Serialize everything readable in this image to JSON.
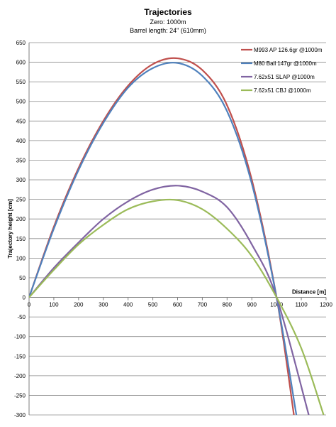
{
  "chart_data": {
    "type": "line",
    "title": "Trajectories",
    "subtitle_lines": [
      "Zero: 1000m",
      "Barrel length: 24\" (610mm)"
    ],
    "xlabel": "Distance [m]",
    "ylabel": "Trajectory height [cm]",
    "xlim": [
      0,
      1200
    ],
    "ylim": [
      -300,
      650
    ],
    "x_ticks": [
      0,
      100,
      200,
      300,
      400,
      500,
      600,
      700,
      800,
      900,
      1000,
      1100,
      1200
    ],
    "y_ticks": [
      650,
      600,
      550,
      500,
      450,
      400,
      350,
      300,
      250,
      200,
      150,
      100,
      50,
      0,
      -50,
      -100,
      -150,
      -200,
      -250,
      -300
    ],
    "grid": "horizontal",
    "legend_position": "top-right",
    "series": [
      {
        "name": "M993 AP 126.6gr @1000m",
        "color": "#c0504d",
        "points": [
          [
            0,
            0
          ],
          [
            100,
            180
          ],
          [
            200,
            330
          ],
          [
            300,
            450
          ],
          [
            400,
            540
          ],
          [
            500,
            595
          ],
          [
            600,
            610
          ],
          [
            700,
            580
          ],
          [
            800,
            490
          ],
          [
            900,
            300
          ],
          [
            1000,
            0
          ],
          [
            1070,
            -300
          ]
        ]
      },
      {
        "name": "M80 Ball 147gr @1000m",
        "color": "#4f81bd",
        "points": [
          [
            0,
            0
          ],
          [
            100,
            175
          ],
          [
            200,
            325
          ],
          [
            300,
            445
          ],
          [
            400,
            535
          ],
          [
            500,
            585
          ],
          [
            600,
            598
          ],
          [
            700,
            565
          ],
          [
            800,
            475
          ],
          [
            900,
            290
          ],
          [
            1000,
            0
          ],
          [
            1080,
            -300
          ]
        ]
      },
      {
        "name": "7.62x51 SLAP @1000m",
        "color": "#8064a2",
        "points": [
          [
            0,
            0
          ],
          [
            100,
            75
          ],
          [
            200,
            140
          ],
          [
            300,
            200
          ],
          [
            400,
            245
          ],
          [
            500,
            275
          ],
          [
            600,
            285
          ],
          [
            700,
            270
          ],
          [
            800,
            230
          ],
          [
            900,
            135
          ],
          [
            1000,
            0
          ],
          [
            1130,
            -300
          ]
        ]
      },
      {
        "name": "7.62x51 CBJ @1000m",
        "color": "#9bbb59",
        "points": [
          [
            0,
            0
          ],
          [
            100,
            70
          ],
          [
            200,
            135
          ],
          [
            300,
            185
          ],
          [
            400,
            225
          ],
          [
            500,
            245
          ],
          [
            600,
            248
          ],
          [
            700,
            225
          ],
          [
            800,
            175
          ],
          [
            900,
            105
          ],
          [
            1000,
            0
          ],
          [
            1100,
            -130
          ],
          [
            1190,
            -300
          ]
        ]
      }
    ]
  }
}
